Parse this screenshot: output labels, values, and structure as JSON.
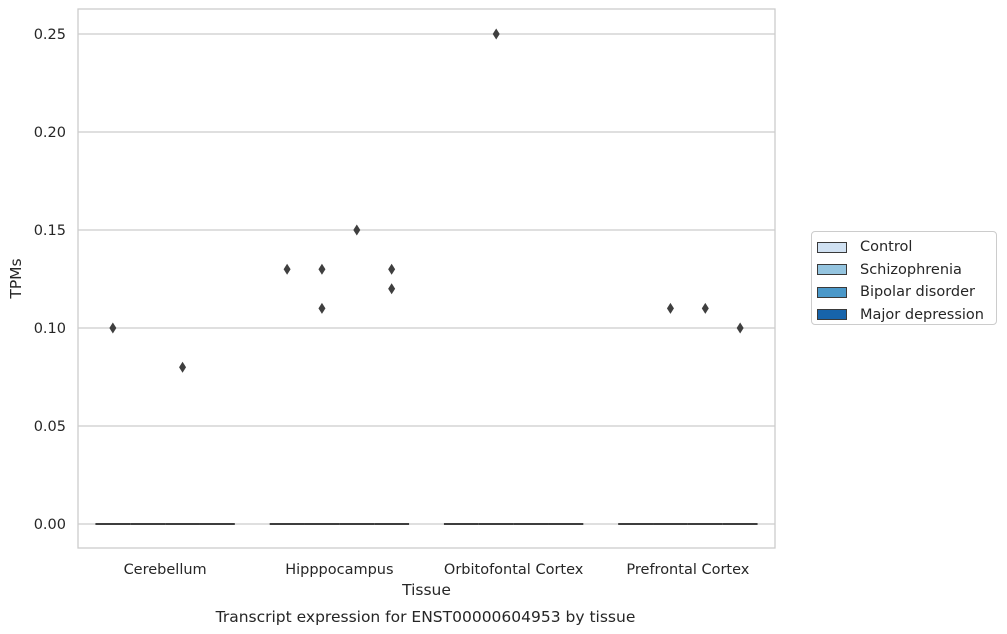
{
  "chart_data": {
    "type": "box",
    "title": "Transcript expression for ENST00000604953 by tissue",
    "xlabel": "Tissue",
    "ylabel": "TPMs",
    "categories": [
      "Cerebellum",
      "Hipppocampus",
      "Orbitofontal Cortex",
      "Prefrontal Cortex"
    ],
    "ylim": [
      -0.0125,
      0.2625
    ],
    "yticks": [
      0.0,
      0.05,
      0.1,
      0.15,
      0.2,
      0.25
    ],
    "ytick_labels": [
      "0.00",
      "0.05",
      "0.10",
      "0.15",
      "0.20",
      "0.25"
    ],
    "grid": "horizontal",
    "legend_placement": "right",
    "series": [
      {
        "name": "Control",
        "color": "#d0e1f2",
        "median": 0,
        "outliers": [
          {
            "category": "Cerebellum",
            "y": 0.1
          },
          {
            "category": "Hipppocampus",
            "y": 0.13
          }
        ]
      },
      {
        "name": "Schizophrenia",
        "color": "#94c4df",
        "median": 0,
        "outliers": [
          {
            "category": "Hipppocampus",
            "y": 0.13
          },
          {
            "category": "Hipppocampus",
            "y": 0.11
          },
          {
            "category": "Orbitofontal Cortex",
            "y": 0.25
          },
          {
            "category": "Prefrontal Cortex",
            "y": 0.11
          }
        ]
      },
      {
        "name": "Bipolar disorder",
        "color": "#4a98c9",
        "median": 0,
        "outliers": [
          {
            "category": "Cerebellum",
            "y": 0.08
          },
          {
            "category": "Hipppocampus",
            "y": 0.15
          },
          {
            "category": "Prefrontal Cortex",
            "y": 0.11
          }
        ]
      },
      {
        "name": "Major depression",
        "color": "#1764ab",
        "median": 0,
        "outliers": [
          {
            "category": "Hipppocampus",
            "y": 0.13
          },
          {
            "category": "Hipppocampus",
            "y": 0.12
          },
          {
            "category": "Prefrontal Cortex",
            "y": 0.1
          }
        ]
      }
    ]
  }
}
